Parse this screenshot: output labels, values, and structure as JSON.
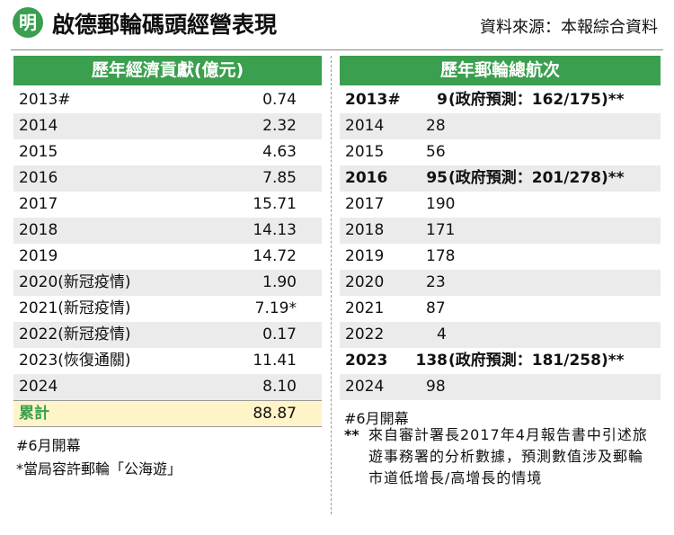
{
  "header": {
    "logo": "明",
    "title": "啟德郵輪碼頭經營表現",
    "source": "資料來源：本報綜合資料"
  },
  "left": {
    "title": "歷年經濟貢獻(億元)",
    "rows": [
      [
        "2013#",
        "0.74"
      ],
      [
        "2014",
        "2.32"
      ],
      [
        "2015",
        "4.63"
      ],
      [
        "2016",
        "7.85"
      ],
      [
        "2017",
        "15.71"
      ],
      [
        "2018",
        "14.13"
      ],
      [
        "2019",
        "14.72"
      ],
      [
        "2020(新冠疫情)",
        "1.90"
      ],
      [
        "2021(新冠疫情)",
        "7.19*"
      ],
      [
        "2022(新冠疫情)",
        "0.17"
      ],
      [
        "2023(恢復通關)",
        "11.41"
      ],
      [
        "2024",
        "8.10"
      ]
    ],
    "total": [
      "累計",
      "88.87"
    ],
    "notes": [
      "#6月開幕",
      "*當局容許郵輪「公海遊」"
    ]
  },
  "right": {
    "title": "歷年郵輪總航次",
    "rows": [
      {
        "year": "2013#",
        "value": "9",
        "note": "(政府預測：162/175)**",
        "bold": true
      },
      {
        "year": "2014",
        "value": "28"
      },
      {
        "year": "2015",
        "value": "56"
      },
      {
        "year": "2016",
        "value": "95",
        "note": "(政府預測：201/278)**",
        "bold": true
      },
      {
        "year": "2017",
        "value": "190"
      },
      {
        "year": "2018",
        "value": "171"
      },
      {
        "year": "2019",
        "value": "178"
      },
      {
        "year": "2020",
        "value": "23"
      },
      {
        "year": "2021",
        "value": "87"
      },
      {
        "year": "2022",
        "value": "4"
      },
      {
        "year": "2023",
        "value": "138",
        "note": "(政府預測：181/258)**",
        "bold": true
      },
      {
        "year": "2024",
        "value": "98"
      }
    ],
    "notes": [
      "#6月開幕"
    ],
    "footnote_mark": "**",
    "footnote": "來自審計署長2017年4月報告書中引述旅遊事務署的分析數據，預測數值涉及郵輪市道低增長/高增長的情境"
  }
}
